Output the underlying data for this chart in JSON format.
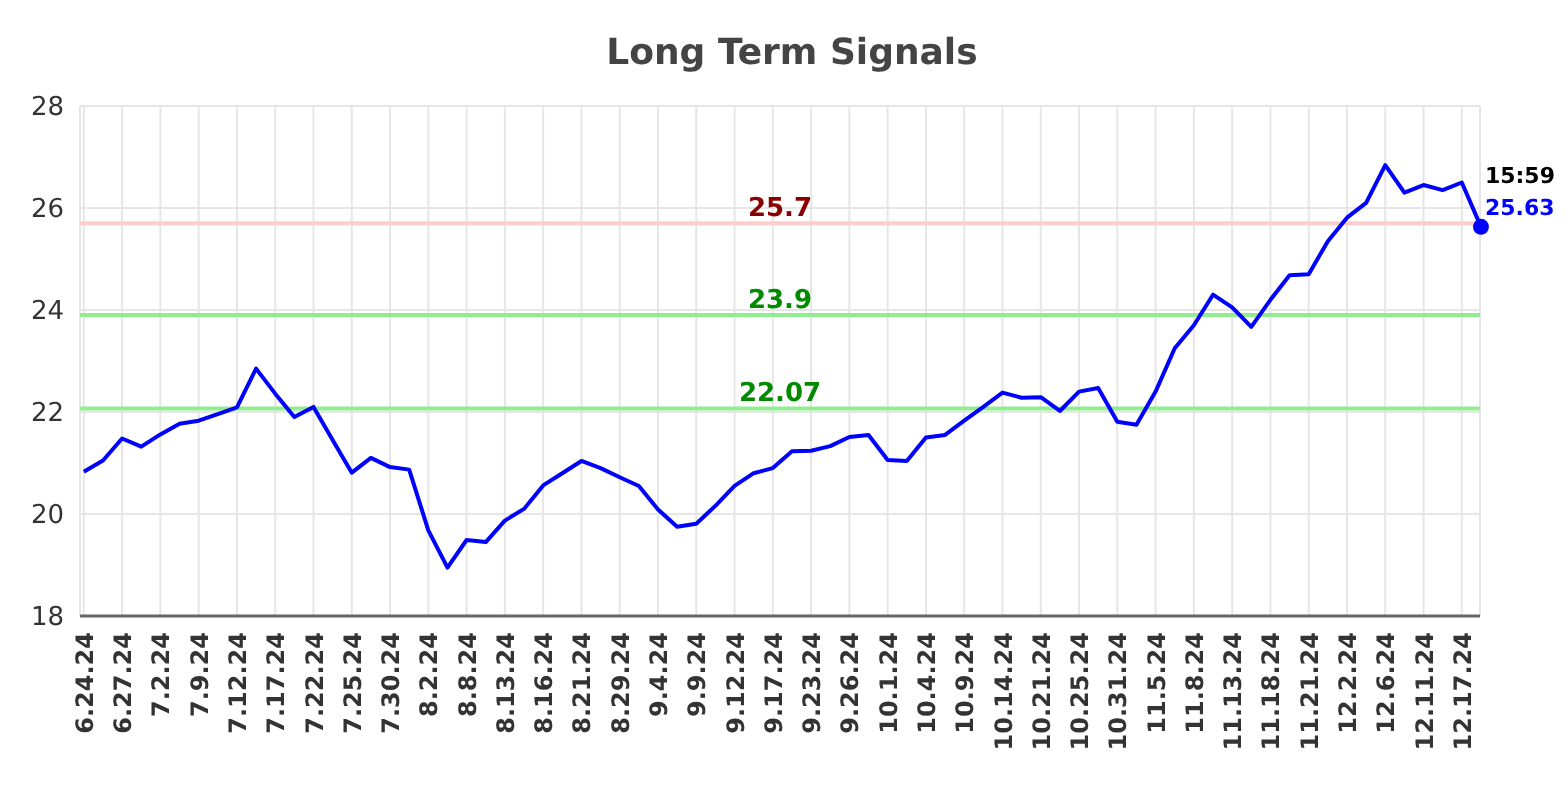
{
  "chart_data": {
    "type": "line",
    "title": "Long Term Signals",
    "categories": [
      "6.24.24",
      null,
      "6.27.24",
      null,
      "7.2.24",
      null,
      "7.9.24",
      null,
      "7.12.24",
      null,
      "7.17.24",
      null,
      "7.22.24",
      null,
      "7.25.24",
      null,
      "7.30.24",
      null,
      "8.2.24",
      null,
      "8.8.24",
      null,
      "8.13.24",
      null,
      "8.16.24",
      null,
      "8.21.24",
      null,
      "8.29.24",
      null,
      "9.4.24",
      null,
      "9.9.24",
      null,
      "9.12.24",
      null,
      "9.17.24",
      null,
      "9.23.24",
      null,
      "9.26.24",
      null,
      "10.1.24",
      null,
      "10.4.24",
      null,
      "10.9.24",
      null,
      "10.14.24",
      null,
      "10.21.24",
      null,
      "10.25.24",
      null,
      "10.31.24",
      null,
      "11.5.24",
      null,
      "11.8.24",
      null,
      "11.13.24",
      null,
      "11.18.24",
      null,
      "11.21.24",
      null,
      "12.2.24",
      null,
      "12.6.24",
      null,
      "12.11.24",
      null,
      "12.17.24",
      null
    ],
    "series": [
      {
        "color": "#0000ff",
        "values": [
          20.83,
          21.05,
          21.48,
          21.32,
          21.56,
          21.77,
          21.83,
          21.96,
          22.09,
          22.85,
          22.36,
          21.9,
          22.1,
          21.45,
          20.81,
          21.1,
          20.92,
          20.87,
          19.68,
          18.95,
          19.49,
          19.45,
          19.87,
          20.1,
          20.56,
          20.8,
          21.04,
          20.9,
          20.72,
          20.55,
          20.09,
          19.75,
          19.81,
          20.16,
          20.55,
          20.8,
          20.9,
          21.23,
          21.24,
          21.33,
          21.51,
          21.55,
          21.06,
          21.04,
          21.5,
          21.55,
          21.83,
          22.1,
          22.38,
          22.28,
          22.29,
          22.02,
          22.4,
          22.47,
          21.81,
          21.75,
          22.4,
          23.25,
          23.7,
          24.3,
          24.05,
          23.67,
          24.2,
          24.68,
          24.7,
          25.35,
          25.81,
          26.1,
          26.84,
          26.3,
          26.45,
          26.35,
          26.5,
          25.63
        ],
        "value_labels": [
          null,
          null,
          null,
          null,
          null,
          null,
          null,
          null,
          null,
          null,
          null,
          null,
          null,
          null,
          null,
          null,
          null,
          null,
          null,
          null,
          null,
          null,
          null,
          null,
          null,
          null,
          null,
          null,
          null,
          null,
          null,
          null,
          null,
          null,
          null,
          null,
          null,
          null,
          null,
          null,
          null,
          null,
          null,
          null,
          null,
          null,
          null,
          null,
          null,
          null,
          null,
          null,
          null,
          null,
          null,
          null,
          null,
          null,
          null,
          null,
          null,
          null,
          null,
          null,
          null,
          null,
          null,
          null,
          null,
          null,
          null,
          null,
          null,
          "25.63"
        ]
      }
    ],
    "annotations": [
      "15:59"
    ],
    "ylim": [
      18,
      28
    ],
    "yticks": [
      18,
      20,
      22,
      24,
      26,
      28
    ],
    "grid": true,
    "marker": "none",
    "line_style": "solid",
    "ref_lines": [
      {
        "axis": "y",
        "value": 25.7,
        "label": "25.7",
        "color": "#ffcccc"
      },
      {
        "axis": "y",
        "value": 23.9,
        "label": "23.9",
        "color": "#90ee90"
      },
      {
        "axis": "y",
        "value": 22.07,
        "label": "22.07",
        "color": "#90ee90"
      }
    ]
  }
}
